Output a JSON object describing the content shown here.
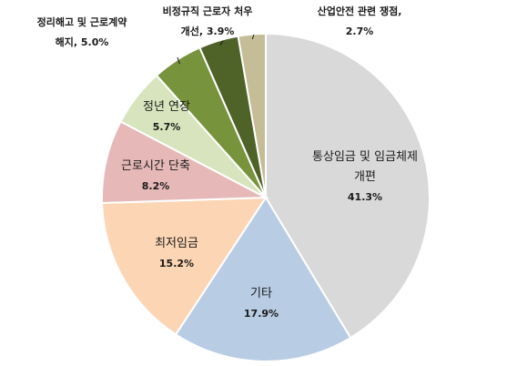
{
  "chart_data": {
    "type": "pie",
    "slices": [
      {
        "name": "통상임금 및 임금체제 개편",
        "lines": [
          "통상임금 및 임금체제",
          "개편"
        ],
        "value": 41.3,
        "value_label": "41.3%",
        "color": "#d9d9d9"
      },
      {
        "name": "기타",
        "lines": [
          "기타"
        ],
        "value": 17.9,
        "value_label": "17.9%",
        "color": "#b8cce4"
      },
      {
        "name": "최저임금",
        "lines": [
          "최저임금"
        ],
        "value": 15.2,
        "value_label": "15.2%",
        "color": "#fcd5b5"
      },
      {
        "name": "근로시간 단축",
        "lines": [
          "근로시간 단축"
        ],
        "value": 8.2,
        "value_label": "8.2%",
        "color": "#e6b9b8"
      },
      {
        "name": "정년 연장",
        "lines": [
          "정년 연장"
        ],
        "value": 5.7,
        "value_label": "5.7%",
        "color": "#d7e4bd"
      },
      {
        "name": "정리해고 및 근로계약 해지",
        "lines": [
          "정리해고 및 근로계약",
          "해지, 5.0%"
        ],
        "value": 5.0,
        "value_label": "",
        "color": "#77933c"
      },
      {
        "name": "비정규직 근로자 처우 개선",
        "lines": [
          "비정규직 근로자 처우",
          "개선, 3.9%"
        ],
        "value": 3.9,
        "value_label": "",
        "color": "#4f6228"
      },
      {
        "name": "산업안전 관련 쟁점",
        "lines": [
          "산업안전 관련 쟁점,",
          "2.7%"
        ],
        "value": 2.7,
        "value_label": "",
        "color": "#c4bd97"
      }
    ],
    "title": "",
    "legend": "none"
  }
}
